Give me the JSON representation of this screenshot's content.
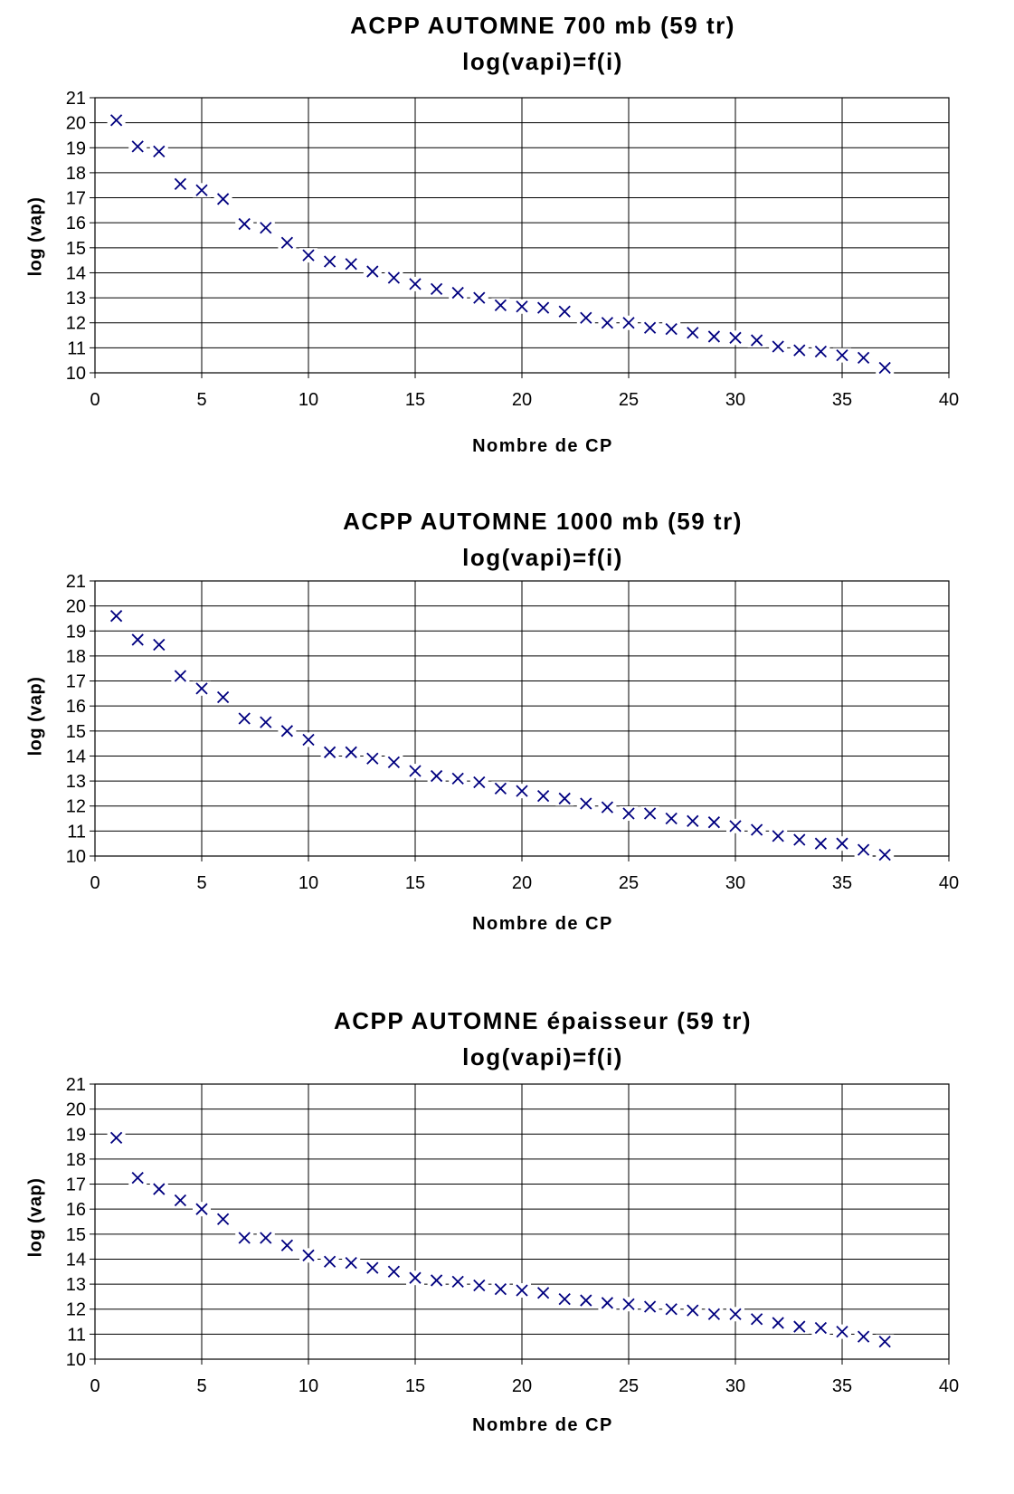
{
  "chart_data": [
    {
      "type": "scatter",
      "title": "ACPP AUTOMNE 700 mb (59 tr)",
      "subtitle": "log(vapi)=f(i)",
      "xlabel": "Nombre de CP",
      "ylabel": "log (vap)",
      "xlim": [
        0,
        40
      ],
      "ylim": [
        10,
        21
      ],
      "xticks": [
        0,
        5,
        10,
        15,
        20,
        25,
        30,
        35,
        40
      ],
      "yticks": [
        10,
        11,
        12,
        13,
        14,
        15,
        16,
        17,
        18,
        19,
        20,
        21
      ],
      "grid": true,
      "marker": "x",
      "color": "#00007f",
      "x": [
        1,
        2,
        3,
        4,
        5,
        6,
        7,
        8,
        9,
        10,
        11,
        12,
        13,
        14,
        15,
        16,
        17,
        18,
        19,
        20,
        21,
        22,
        23,
        24,
        25,
        26,
        27,
        28,
        29,
        30,
        31,
        32,
        33,
        34,
        35,
        36,
        37
      ],
      "y": [
        20.1,
        19.05,
        18.85,
        17.55,
        17.3,
        16.95,
        15.95,
        15.8,
        15.2,
        14.7,
        14.45,
        14.35,
        14.05,
        13.8,
        13.55,
        13.35,
        13.2,
        13.0,
        12.7,
        12.65,
        12.6,
        12.45,
        12.2,
        12.0,
        12.0,
        11.8,
        11.75,
        11.6,
        11.45,
        11.4,
        11.3,
        11.05,
        10.9,
        10.85,
        10.7,
        10.6,
        10.2
      ]
    },
    {
      "type": "scatter",
      "title": "ACPP AUTOMNE 1000 mb (59 tr)",
      "subtitle": "log(vapi)=f(i)",
      "xlabel": "Nombre de CP",
      "ylabel": "log (vap)",
      "xlim": [
        0,
        40
      ],
      "ylim": [
        10,
        21
      ],
      "xticks": [
        0,
        5,
        10,
        15,
        20,
        25,
        30,
        35,
        40
      ],
      "yticks": [
        10,
        11,
        12,
        13,
        14,
        15,
        16,
        17,
        18,
        19,
        20,
        21
      ],
      "grid": true,
      "marker": "x",
      "color": "#00007f",
      "x": [
        1,
        2,
        3,
        4,
        5,
        6,
        7,
        8,
        9,
        10,
        11,
        12,
        13,
        14,
        15,
        16,
        17,
        18,
        19,
        20,
        21,
        22,
        23,
        24,
        25,
        26,
        27,
        28,
        29,
        30,
        31,
        32,
        33,
        34,
        35,
        36,
        37
      ],
      "y": [
        19.6,
        18.65,
        18.45,
        17.2,
        16.7,
        16.35,
        15.5,
        15.35,
        15.0,
        14.65,
        14.15,
        14.15,
        13.9,
        13.75,
        13.4,
        13.2,
        13.1,
        12.95,
        12.7,
        12.6,
        12.4,
        12.3,
        12.1,
        11.95,
        11.7,
        11.7,
        11.5,
        11.4,
        11.35,
        11.2,
        11.05,
        10.8,
        10.65,
        10.5,
        10.5,
        10.25,
        10.05
      ]
    },
    {
      "type": "scatter",
      "title": "ACPP AUTOMNE épaisseur (59 tr)",
      "subtitle": "log(vapi)=f(i)",
      "xlabel": "Nombre de CP",
      "ylabel": "log (vap)",
      "xlim": [
        0,
        40
      ],
      "ylim": [
        10,
        21
      ],
      "xticks": [
        0,
        5,
        10,
        15,
        20,
        25,
        30,
        35,
        40
      ],
      "yticks": [
        10,
        11,
        12,
        13,
        14,
        15,
        16,
        17,
        18,
        19,
        20,
        21
      ],
      "grid": true,
      "marker": "x",
      "color": "#00007f",
      "x": [
        1,
        2,
        3,
        4,
        5,
        6,
        7,
        8,
        9,
        10,
        11,
        12,
        13,
        14,
        15,
        16,
        17,
        18,
        19,
        20,
        21,
        22,
        23,
        24,
        25,
        26,
        27,
        28,
        29,
        30,
        31,
        32,
        33,
        34,
        35,
        36,
        37
      ],
      "y": [
        18.85,
        17.25,
        16.8,
        16.35,
        16.0,
        15.6,
        14.85,
        14.85,
        14.55,
        14.15,
        13.9,
        13.85,
        13.65,
        13.5,
        13.25,
        13.15,
        13.1,
        12.95,
        12.8,
        12.75,
        12.65,
        12.4,
        12.35,
        12.25,
        12.2,
        12.1,
        12.0,
        11.95,
        11.8,
        11.8,
        11.6,
        11.45,
        11.3,
        11.25,
        11.1,
        10.9,
        10.7
      ]
    }
  ]
}
